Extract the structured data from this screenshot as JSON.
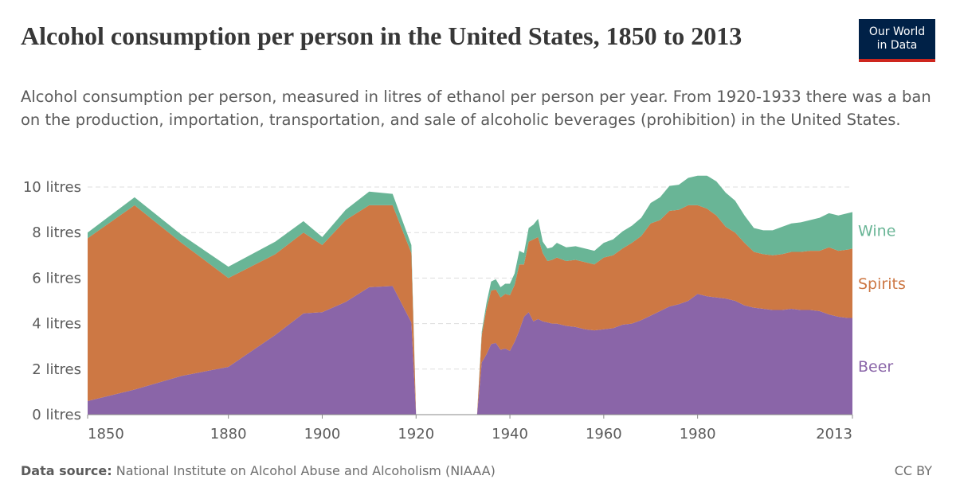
{
  "header": {
    "title": "Alcohol consumption per person in the United States, 1850 to 2013",
    "subtitle": "Alcohol consumption per person, measured in litres of ethanol per person per year. From 1920-1933 there was a ban on the production, importation, transportation, and sale of alcoholic beverages (prohibition) in the United States.",
    "logo_line1": "Our World",
    "logo_line2": "in Data"
  },
  "footer": {
    "source_label": "Data source:",
    "source_text": "National Institute on Alcohol Abuse and Alcoholism (NIAAA)",
    "license": "CC BY"
  },
  "colors": {
    "beer": "#8a65a8",
    "spirits": "#cd7844",
    "wine": "#69b596",
    "grid": "#dddddd",
    "axis": "#8a8a8a"
  },
  "chart_data": {
    "type": "area",
    "stacked": true,
    "title": "Alcohol consumption per person in the United States, 1850 to 2013",
    "ylabel": "",
    "xlabel": "",
    "xlim": [
      1850,
      2013
    ],
    "ylim": [
      0,
      10
    ],
    "x_ticks": [
      1850,
      1880,
      1900,
      1920,
      1940,
      1960,
      1980,
      2013
    ],
    "y_ticks": [
      {
        "value": 0,
        "label": "0 litres"
      },
      {
        "value": 2,
        "label": "2 litres"
      },
      {
        "value": 4,
        "label": "4 litres"
      },
      {
        "value": 6,
        "label": "6 litres"
      },
      {
        "value": 8,
        "label": "8 litres"
      },
      {
        "value": 10,
        "label": "10 litres"
      }
    ],
    "grid": "horizontal dashed",
    "legend": "right, inline labels",
    "x": [
      1850,
      1860,
      1870,
      1880,
      1890,
      1896,
      1900,
      1905,
      1910,
      1915,
      1919,
      1920,
      1933,
      1934,
      1935,
      1936,
      1937,
      1938,
      1939,
      1940,
      1941,
      1942,
      1943,
      1944,
      1945,
      1946,
      1947,
      1948,
      1949,
      1950,
      1952,
      1954,
      1956,
      1958,
      1960,
      1962,
      1964,
      1966,
      1968,
      1970,
      1972,
      1974,
      1976,
      1978,
      1980,
      1982,
      1984,
      1986,
      1988,
      1990,
      1992,
      1994,
      1996,
      1998,
      2000,
      2002,
      2004,
      2006,
      2008,
      2010,
      2012,
      2013
    ],
    "series": [
      {
        "name": "Beer",
        "values": [
          0.6,
          1.1,
          1.7,
          2.1,
          3.5,
          4.45,
          4.5,
          4.95,
          5.6,
          5.65,
          4.05,
          0,
          0,
          2.3,
          2.65,
          3.1,
          3.15,
          2.85,
          2.9,
          2.8,
          3.2,
          3.7,
          4.3,
          4.5,
          4.1,
          4.2,
          4.1,
          4.05,
          4.0,
          4.0,
          3.9,
          3.85,
          3.75,
          3.7,
          3.75,
          3.8,
          3.95,
          4.0,
          4.15,
          4.35,
          4.55,
          4.75,
          4.85,
          5.0,
          5.3,
          5.2,
          5.15,
          5.1,
          5.0,
          4.8,
          4.7,
          4.65,
          4.6,
          4.6,
          4.65,
          4.6,
          4.6,
          4.55,
          4.4,
          4.3,
          4.25,
          4.25
        ]
      },
      {
        "name": "Spirits",
        "values": [
          7.15,
          8.1,
          5.85,
          3.9,
          3.55,
          3.55,
          2.95,
          3.6,
          3.6,
          3.55,
          3.05,
          0,
          0,
          1.2,
          2.0,
          2.35,
          2.35,
          2.3,
          2.4,
          2.45,
          2.5,
          2.9,
          2.3,
          3.1,
          3.6,
          3.6,
          3.0,
          2.7,
          2.8,
          2.9,
          2.85,
          2.95,
          2.95,
          2.9,
          3.15,
          3.2,
          3.35,
          3.55,
          3.7,
          4.05,
          4.0,
          4.2,
          4.15,
          4.2,
          3.9,
          3.85,
          3.6,
          3.15,
          3.0,
          2.75,
          2.45,
          2.4,
          2.4,
          2.45,
          2.5,
          2.55,
          2.6,
          2.65,
          2.95,
          2.9,
          3.0,
          3.05
        ]
      },
      {
        "name": "Wine",
        "values": [
          0.25,
          0.35,
          0.35,
          0.5,
          0.55,
          0.5,
          0.35,
          0.45,
          0.6,
          0.5,
          0.35,
          0,
          0,
          0.15,
          0.25,
          0.4,
          0.45,
          0.45,
          0.45,
          0.5,
          0.5,
          0.6,
          0.5,
          0.6,
          0.65,
          0.8,
          0.5,
          0.55,
          0.55,
          0.65,
          0.6,
          0.6,
          0.6,
          0.6,
          0.65,
          0.7,
          0.75,
          0.75,
          0.8,
          0.9,
          1.0,
          1.1,
          1.1,
          1.2,
          1.3,
          1.45,
          1.5,
          1.5,
          1.4,
          1.2,
          1.05,
          1.05,
          1.1,
          1.2,
          1.25,
          1.3,
          1.35,
          1.45,
          1.5,
          1.55,
          1.6,
          1.6
        ]
      }
    ]
  }
}
